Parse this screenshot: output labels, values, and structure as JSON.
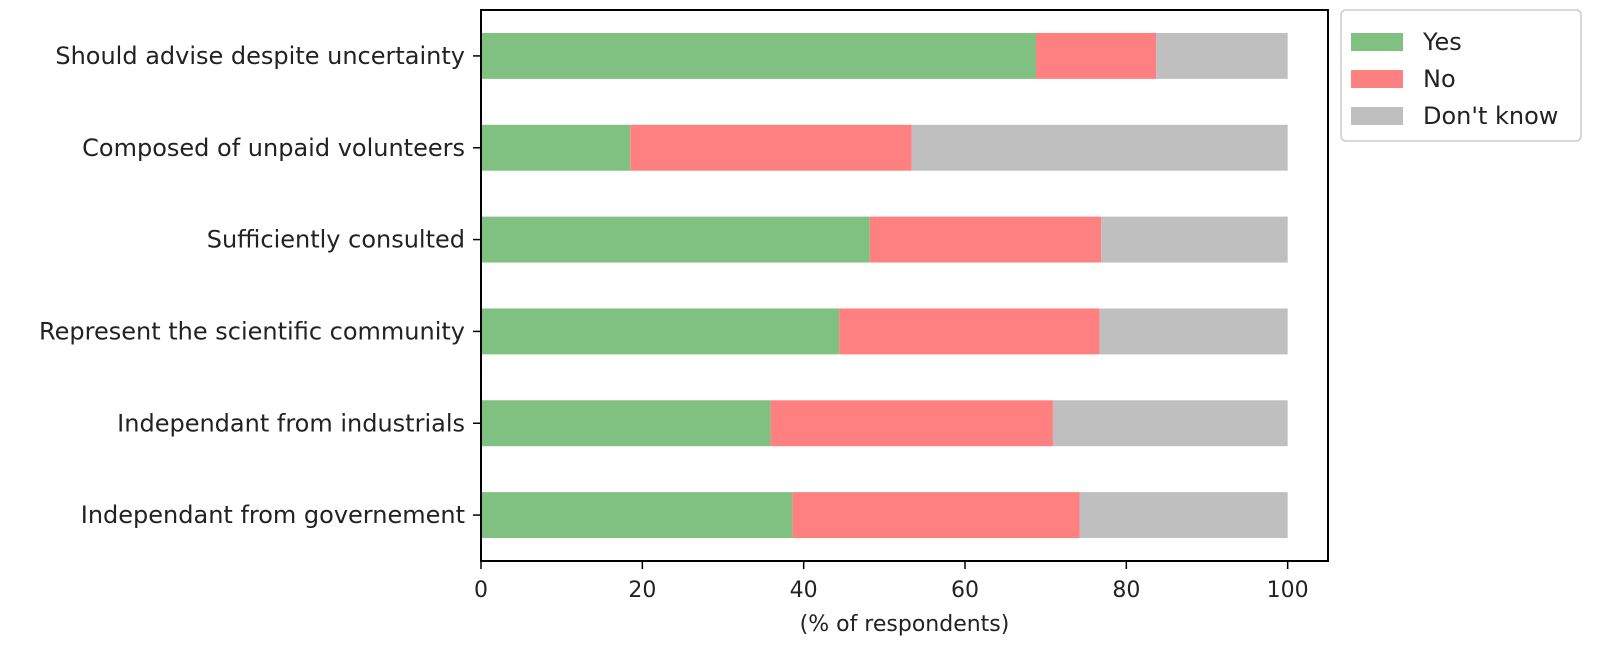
{
  "chart_data": {
    "type": "bar",
    "orientation": "horizontal",
    "stacked": true,
    "title": "",
    "xlabel": "(% of respondents)",
    "ylabel": "",
    "xlim": [
      0,
      105
    ],
    "xticks": [
      0,
      20,
      40,
      60,
      80,
      100
    ],
    "categories": [
      "Should advise despite uncertainty",
      "Composed of unpaid volunteers",
      "Sufficiently consulted",
      "Represent the scientific community",
      "Independant from industrials",
      "Independant from governement"
    ],
    "series": [
      {
        "name": "Yes",
        "color": "#80c080",
        "values": [
          68.8,
          18.5,
          48.2,
          44.4,
          35.9,
          38.6
        ]
      },
      {
        "name": "No",
        "color": "#ff8080",
        "values": [
          14.9,
          34.9,
          28.7,
          32.3,
          35.0,
          35.6
        ]
      },
      {
        "name": "Don't know",
        "color": "#bfbfbf",
        "values": [
          16.3,
          46.6,
          23.1,
          23.3,
          29.1,
          25.8
        ]
      }
    ],
    "grid": false,
    "legend": {
      "position": "outside-top-right"
    }
  }
}
